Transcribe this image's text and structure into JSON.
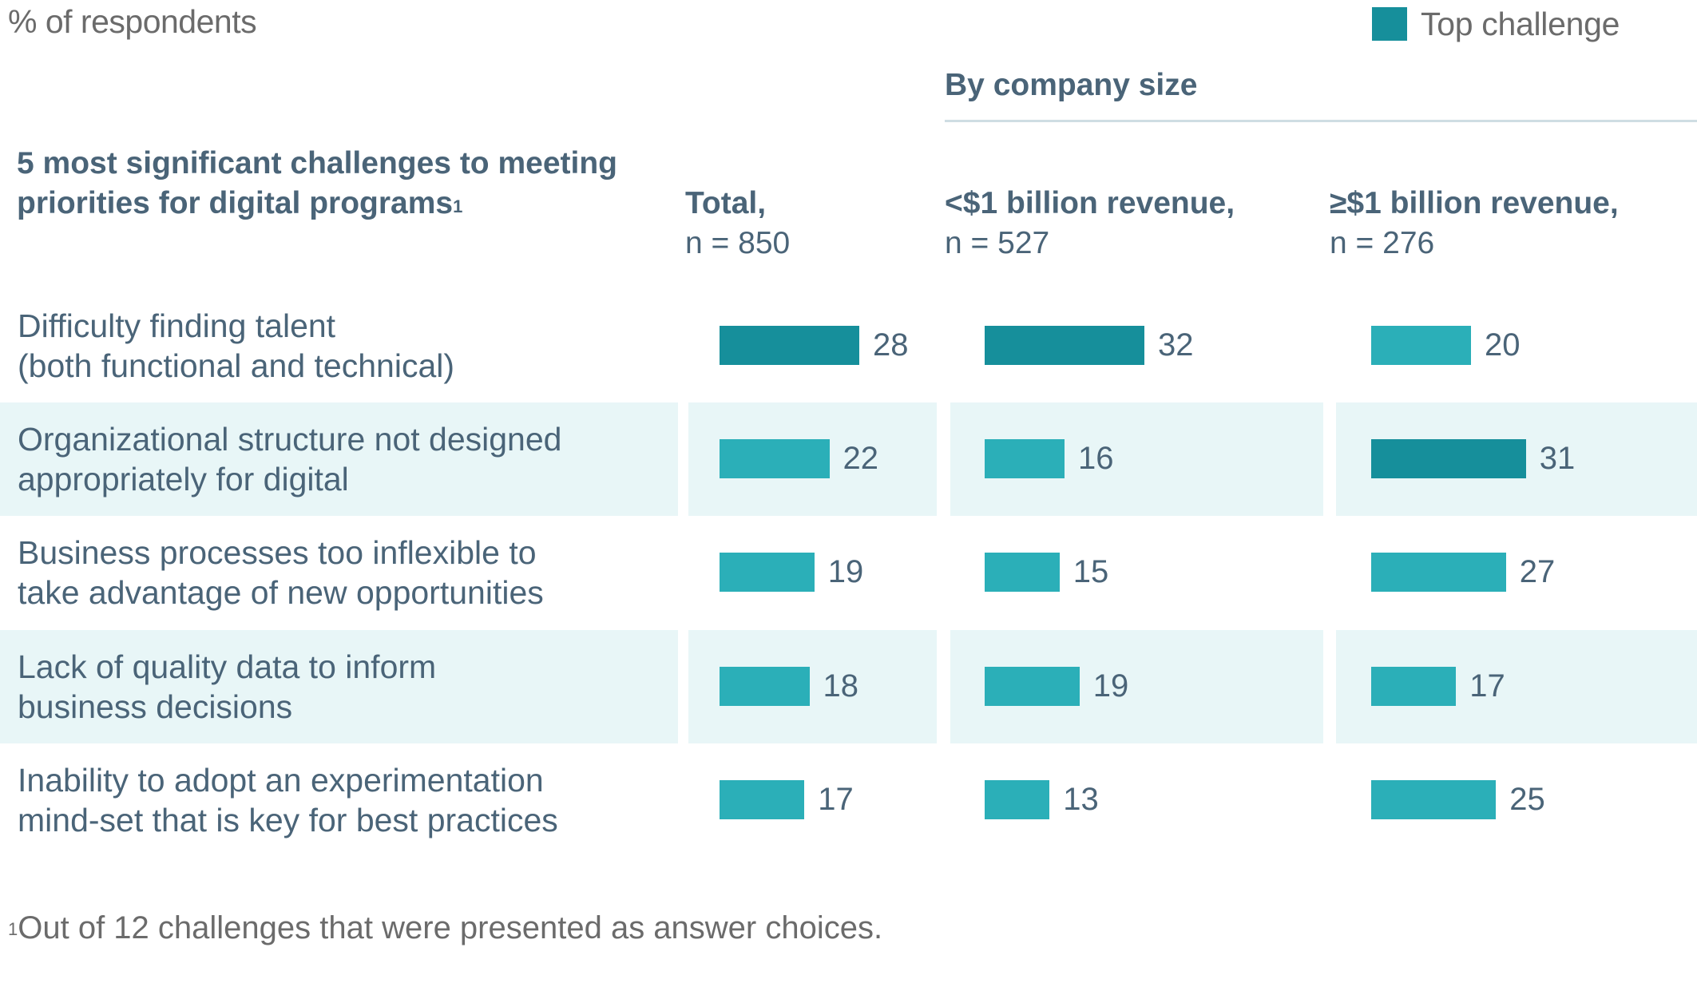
{
  "chart_data": {
    "type": "bar",
    "orientation": "horizontal",
    "unit_label": "% of respondents",
    "legend": [
      {
        "label": "Top challenge",
        "color": "#168f9b"
      }
    ],
    "legend_position": "top-right",
    "group_title": "By company size",
    "category_header": "5 most significant challenges to meeting priorities for digital programs",
    "category_header_footnote": "1",
    "categories": [
      "Difficulty finding talent (both functional and technical)",
      "Organizational structure not designed appropriately for digital",
      "Business processes too inflexible to take advantage of new opportunities",
      "Lack of quality data to inform business decisions",
      "Inability to adopt an experimentation mind-set that is key for best practices"
    ],
    "series": [
      {
        "name": "Total",
        "n_label": "n = 850",
        "values": [
          28,
          22,
          19,
          18,
          17
        ],
        "top_index": 0
      },
      {
        "name": "<$1 billion revenue",
        "n_label": "n = 527",
        "values": [
          32,
          16,
          15,
          19,
          13
        ],
        "top_index": 0
      },
      {
        "name": "≥$1 billion revenue",
        "n_label": "n = 276",
        "values": [
          20,
          31,
          27,
          17,
          25
        ],
        "top_index": 1
      }
    ],
    "colors": {
      "top": "#168f9b",
      "normal": "#2bafb8",
      "row_shade": "#e8f6f7"
    },
    "footnote": "Out of 12 challenges that were presented as answer choices."
  },
  "header": {
    "unit": "% of respondents",
    "legend_label": "Top challenge",
    "group_title": "By company size",
    "left_title": "5 most significant challenges to meeting priorities for digital programs",
    "left_title_sup": "1",
    "columns": [
      {
        "title": "Total,",
        "n": "n = 850"
      },
      {
        "title": "<$1 billion revenue,",
        "n": "n = 527"
      },
      {
        "title": "≥$1 billion revenue,",
        "n": "n = 276"
      }
    ]
  },
  "rows": [
    {
      "line1": "Difficulty finding talent",
      "line2": "(both functional and technical)"
    },
    {
      "line1": "Organizational structure not designed",
      "line2": "appropriately for digital"
    },
    {
      "line1": "Business processes too inflexible to",
      "line2": "take advantage of new opportunities"
    },
    {
      "line1": "Lack of quality data to inform",
      "line2": "business decisions"
    },
    {
      "line1": "Inability to adopt an experimentation",
      "line2": "mind-set that is key for best practices"
    }
  ],
  "footnote": {
    "sup": "1",
    "text": "Out of 12 challenges that were presented as answer choices."
  }
}
